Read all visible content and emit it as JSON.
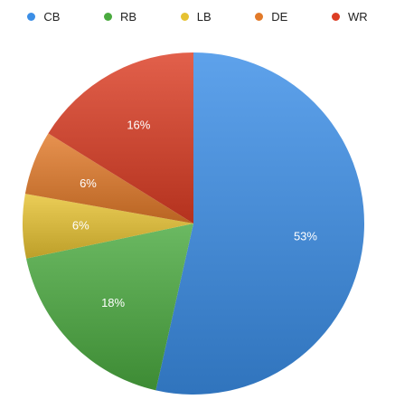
{
  "chart_data": {
    "type": "pie",
    "categories": [
      "CB",
      "RB",
      "LB",
      "DE",
      "WR"
    ],
    "values": [
      53,
      18,
      6,
      6,
      16
    ],
    "labels": [
      "53%",
      "18%",
      "6%",
      "6%",
      "16%"
    ],
    "colors": [
      "#3b8ee6",
      "#4aaa3f",
      "#e6c232",
      "#e27a29",
      "#dc3d24"
    ],
    "legend": {
      "position": "top"
    }
  }
}
